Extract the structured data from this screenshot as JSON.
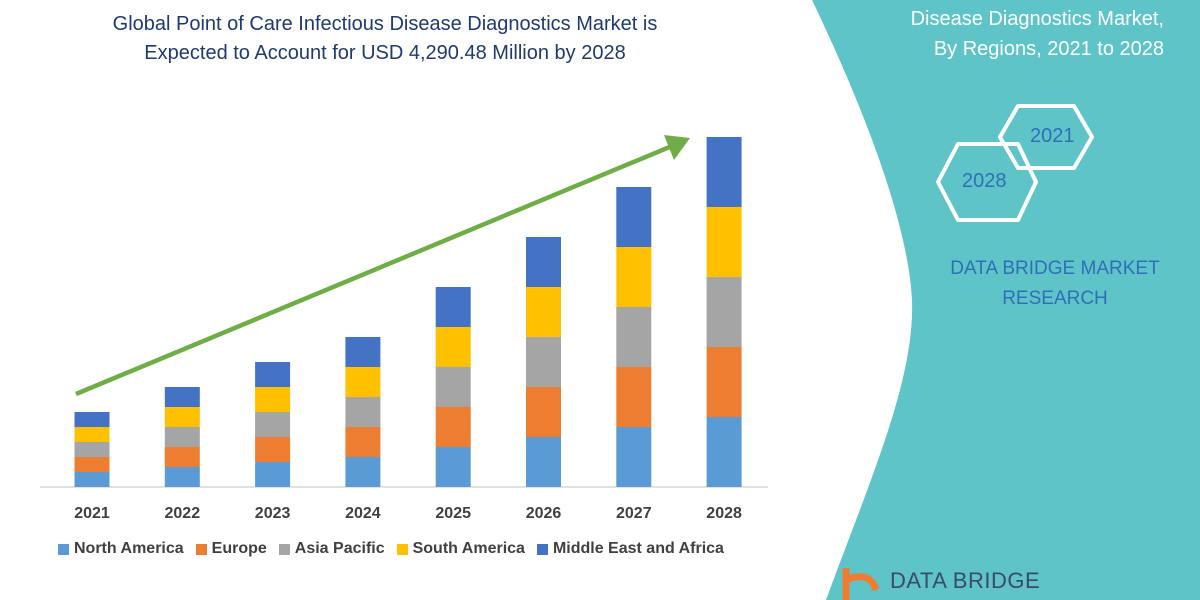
{
  "title_line1": "Global Point of Care Infectious Disease Diagnostics Market is",
  "title_line2": "Expected to Account for USD 4,290.48 Million by 2028",
  "side_panel": {
    "title_line1": "Disease Diagnostics Market,",
    "title_line2": "By Regions, 2021 to 2028",
    "hex_years": [
      "2021",
      "2028"
    ],
    "brand_line1": "DATA BRIDGE MARKET",
    "brand_line2": "RESEARCH",
    "logo_text": "DATA BRIDGE",
    "panel_color": "#5fc4c8"
  },
  "chart_data": {
    "type": "bar",
    "stacked": true,
    "categories": [
      "2021",
      "2022",
      "2023",
      "2024",
      "2025",
      "2026",
      "2027",
      "2028"
    ],
    "series": [
      {
        "name": "North America",
        "color": "#5b9bd5",
        "values": [
          15,
          20,
          25,
          30,
          40,
          50,
          60,
          70
        ]
      },
      {
        "name": "Europe",
        "color": "#ed7d31",
        "values": [
          15,
          20,
          25,
          30,
          40,
          50,
          60,
          70
        ]
      },
      {
        "name": "Asia Pacific",
        "color": "#a5a5a5",
        "values": [
          15,
          20,
          25,
          30,
          40,
          50,
          60,
          70
        ]
      },
      {
        "name": "South America",
        "color": "#ffc000",
        "values": [
          15,
          20,
          25,
          30,
          40,
          50,
          60,
          70
        ]
      },
      {
        "name": "Middle East and Africa",
        "color": "#4472c4",
        "values": [
          15,
          20,
          25,
          30,
          40,
          50,
          60,
          70
        ]
      }
    ],
    "values_note_unit": "relative (no y-axis printed)",
    "trend_arrow_color": "#70ad47",
    "legend_position": "bottom",
    "grid": false
  }
}
